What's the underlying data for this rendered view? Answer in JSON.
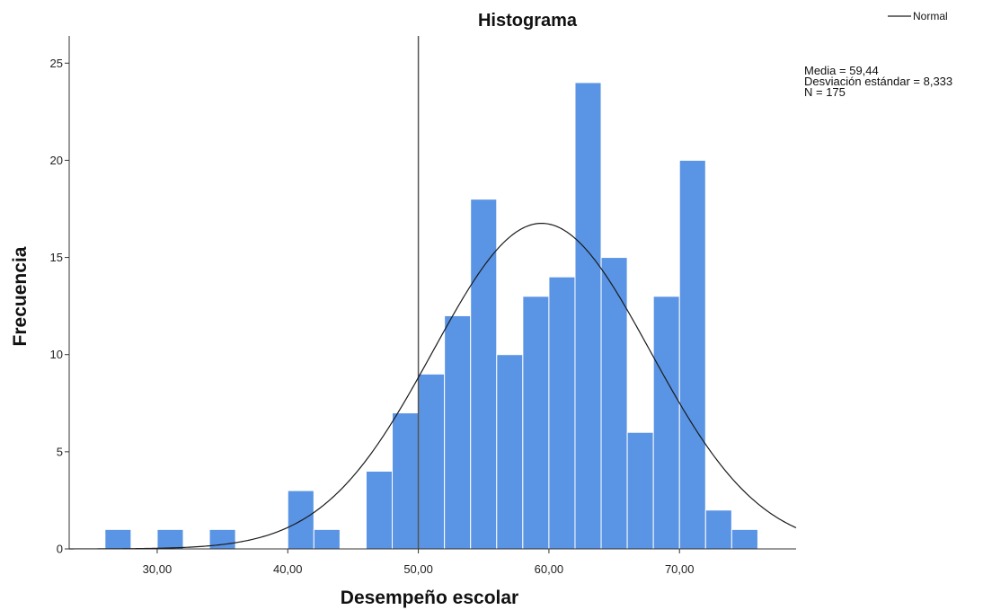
{
  "chart_data": {
    "type": "bar",
    "title": "Histograma",
    "xlabel": "Desempeño escolar",
    "ylabel": "Frecuencia",
    "bin_width": 2,
    "bins": [
      {
        "start": 26,
        "end": 28,
        "count": 1
      },
      {
        "start": 30,
        "end": 32,
        "count": 1
      },
      {
        "start": 34,
        "end": 36,
        "count": 1
      },
      {
        "start": 40,
        "end": 42,
        "count": 3
      },
      {
        "start": 42,
        "end": 44,
        "count": 1
      },
      {
        "start": 46,
        "end": 48,
        "count": 4
      },
      {
        "start": 48,
        "end": 50,
        "count": 7
      },
      {
        "start": 50,
        "end": 52,
        "count": 9
      },
      {
        "start": 52,
        "end": 54,
        "count": 12
      },
      {
        "start": 54,
        "end": 56,
        "count": 18
      },
      {
        "start": 56,
        "end": 58,
        "count": 10
      },
      {
        "start": 58,
        "end": 60,
        "count": 13
      },
      {
        "start": 60,
        "end": 62,
        "count": 14
      },
      {
        "start": 62,
        "end": 64,
        "count": 24
      },
      {
        "start": 64,
        "end": 66,
        "count": 15
      },
      {
        "start": 66,
        "end": 68,
        "count": 6
      },
      {
        "start": 68,
        "end": 70,
        "count": 13
      },
      {
        "start": 70,
        "end": 72,
        "count": 20
      },
      {
        "start": 72,
        "end": 74,
        "count": 2
      },
      {
        "start": 74,
        "end": 76,
        "count": 1
      }
    ],
    "xlim": [
      23.26,
      78.93
    ],
    "ylim": [
      0,
      26.4
    ],
    "x_ticks": [
      {
        "value": 30,
        "label": "30,00"
      },
      {
        "value": 40,
        "label": "40,00"
      },
      {
        "value": 50,
        "label": "50,00"
      },
      {
        "value": 60,
        "label": "60,00"
      },
      {
        "value": 70,
        "label": "70,00"
      }
    ],
    "y_ticks": [
      {
        "value": 0,
        "label": "0"
      },
      {
        "value": 5,
        "label": "5"
      },
      {
        "value": 10,
        "label": "10"
      },
      {
        "value": 15,
        "label": "15"
      },
      {
        "value": 20,
        "label": "20"
      },
      {
        "value": 25,
        "label": "25"
      }
    ],
    "reference_line": {
      "x": 50
    },
    "series": [
      {
        "name": "Normal",
        "mean": 59.44,
        "sd": 8.333,
        "n": 175
      }
    ],
    "stats": [
      "Media = 59,44",
      "Desviación estándar = 8,333",
      "N = 175"
    ],
    "grid": false,
    "legend": {
      "position": "top-right"
    },
    "colors": {
      "bar": "#5A94E4",
      "bar_edge": "#FFFFFF",
      "curve": "#1A1A1A",
      "reference_line": "#555555",
      "axis": "#333333"
    }
  }
}
